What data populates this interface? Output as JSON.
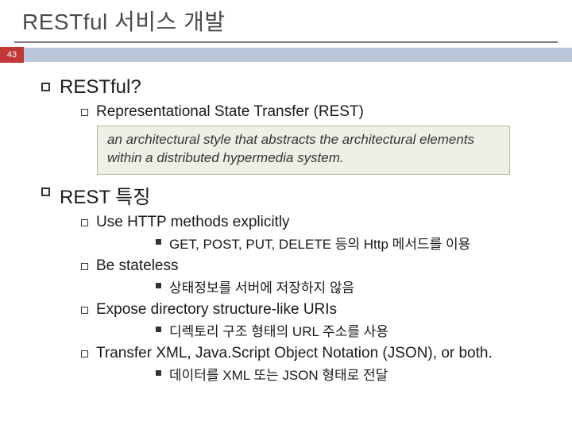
{
  "page_number": "43",
  "title": "RESTful 서비스 개발",
  "section1": {
    "heading": "RESTful?",
    "sub": "Representational State Transfer (REST)",
    "callout": "an architectural style that abstracts the architectural elements within a distributed hypermedia system."
  },
  "section2": {
    "heading": "REST 특징",
    "items": [
      {
        "title": "Use HTTP methods explicitly",
        "sub": "GET, POST, PUT, DELETE 등의 Http 메서드를 이용"
      },
      {
        "title": "Be stateless",
        "sub": "상태정보를 서버에 저장하지 않음"
      },
      {
        "title": "Expose directory structure-like URIs",
        "sub": "디렉토리 구조 형태의 URL 주소를 사용"
      },
      {
        "title": "Transfer XML, Java.Script Object Notation (JSON), or both.",
        "sub": "데이터를 XML 또는 JSON 형태로 전달"
      }
    ]
  },
  "colors": {
    "band": "#b9c6d9",
    "page_box": "#c23838",
    "callout_bg": "#f0efe6",
    "callout_border": "#b8b8a0",
    "underline": "#808080",
    "title_color": "#4a4a4a"
  }
}
